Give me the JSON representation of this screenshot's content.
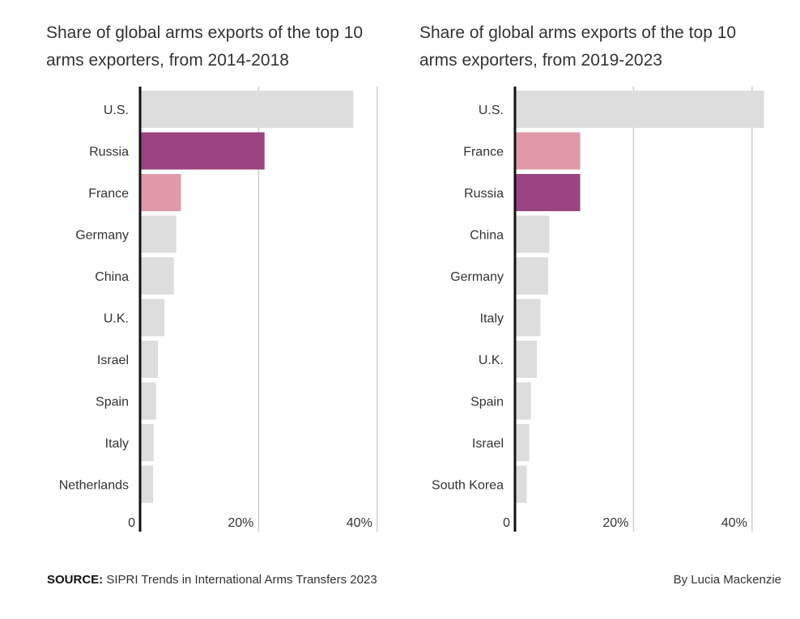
{
  "chart_data": [
    {
      "type": "bar",
      "orientation": "horizontal",
      "title": "Share of global arms exports of the top 10 arms exporters, from 2014-2018",
      "categories": [
        "U.S.",
        "Russia",
        "France",
        "Germany",
        "China",
        "U.K.",
        "Israel",
        "Spain",
        "Italy",
        "Netherlands"
      ],
      "values": [
        36,
        21,
        6.9,
        6.1,
        5.7,
        4.1,
        3.0,
        2.7,
        2.3,
        2.2
      ],
      "colors": [
        "#dddddd",
        "#9b4481",
        "#e099a7",
        "#dddddd",
        "#dddddd",
        "#dddddd",
        "#dddddd",
        "#dddddd",
        "#dddddd",
        "#dddddd"
      ],
      "xlim": [
        0,
        40
      ],
      "xticks": [
        0,
        20,
        40
      ],
      "xtick_labels": [
        "0",
        "20%",
        "40%"
      ],
      "grid": true,
      "xlabel": "",
      "ylabel": ""
    },
    {
      "type": "bar",
      "orientation": "horizontal",
      "title": "Share of global arms exports of the top 10 arms exporters, from 2019-2023",
      "categories": [
        "U.S.",
        "France",
        "Russia",
        "China",
        "Germany",
        "Italy",
        "U.K.",
        "Spain",
        "Israel",
        "South Korea"
      ],
      "values": [
        42,
        11,
        11,
        5.8,
        5.6,
        4.3,
        3.7,
        2.7,
        2.4,
        2.0
      ],
      "colors": [
        "#dddddd",
        "#e099a7",
        "#9b4481",
        "#dddddd",
        "#dddddd",
        "#dddddd",
        "#dddddd",
        "#dddddd",
        "#dddddd",
        "#dddddd"
      ],
      "xlim": [
        0,
        40
      ],
      "xticks": [
        0,
        20,
        40
      ],
      "xtick_labels": [
        "0",
        "20%",
        "40%"
      ],
      "grid": true,
      "xlabel": "",
      "ylabel": ""
    }
  ],
  "footer": {
    "source_label": "SOURCE:",
    "source_text": "SIPRI Trends in International Arms Transfers 2023",
    "byline": "By Lucia Mackenzie"
  },
  "colors": {
    "highlight_dark": "#9b4481",
    "highlight_light": "#e099a7",
    "neutral_bar": "#dddddd",
    "axis": "#111111",
    "grid": "#d0d0d0"
  }
}
